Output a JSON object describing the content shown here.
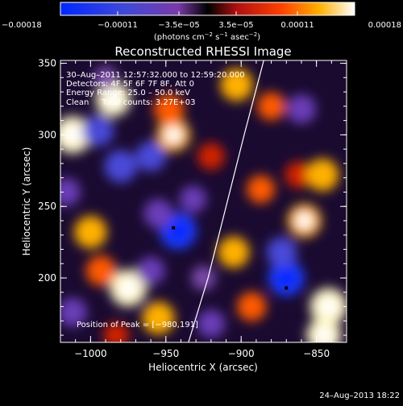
{
  "chart_data": {
    "type": "heatmap",
    "title": "Reconstructed RHESSI Image",
    "xlabel": "Heliocentric X (arcsec)",
    "ylabel": "Heliocentric Y (arcsec)",
    "xlim": [
      -1020,
      -830
    ],
    "ylim": [
      155,
      352
    ],
    "xticks": [
      -1000,
      -950,
      -900,
      -850
    ],
    "xtick_labels": [
      "−1000",
      "−950",
      "−900",
      "−850"
    ],
    "yticks": [
      200,
      250,
      300,
      350
    ],
    "ytick_labels": [
      "200",
      "250",
      "300",
      "350"
    ],
    "colorbar": {
      "min": -0.00018,
      "max": 0.00018,
      "ticks": [
        -0.00018,
        -0.00011,
        -3.5e-05,
        3.5e-05,
        0.00011,
        0.00018
      ],
      "tick_labels": [
        "−0.00018",
        "−0.00011",
        "−3.5e−05",
        "3.5e−05",
        "0.00011",
        "0.00018"
      ],
      "unit_main": "(photons cm",
      "unit_exp1": "−2",
      "unit_mid": " s",
      "unit_exp2": "−1",
      "unit_end": " asec",
      "unit_exp3": "−2",
      "unit_close": ")"
    },
    "info_lines": [
      "30–Aug–2011 12:57:32.000 to 12:59:20.000",
      "Detectors: 4F 5F 6F 7F 8F, Att 0",
      "Energy Range: 25.0 – 50.0 keV",
      "Clean     Total counts: 3.27E+03"
    ],
    "peak_label": "Position of Peak = [−980,191]",
    "peak_markers": [
      {
        "x": -945,
        "y": 235
      },
      {
        "x": -870,
        "y": 193
      }
    ],
    "limb": [
      {
        "x": -935,
        "y": 155
      },
      {
        "x": -922,
        "y": 200
      },
      {
        "x": -910,
        "y": 250
      },
      {
        "x": -898,
        "y": 300
      },
      {
        "x": -885,
        "y": 352
      }
    ],
    "blobs": [
      {
        "x": -1012,
        "y": 300,
        "v": 1.0
      },
      {
        "x": -985,
        "y": 325,
        "v": 0.9
      },
      {
        "x": -1000,
        "y": 232,
        "v": 0.8
      },
      {
        "x": -975,
        "y": 193,
        "v": 1.0
      },
      {
        "x": -993,
        "y": 205,
        "v": 0.7
      },
      {
        "x": -955,
        "y": 172,
        "v": 0.8
      },
      {
        "x": -945,
        "y": 300,
        "v": 0.85
      },
      {
        "x": -948,
        "y": 318,
        "v": 0.7
      },
      {
        "x": -903,
        "y": 335,
        "v": 0.8
      },
      {
        "x": -880,
        "y": 320,
        "v": 0.6
      },
      {
        "x": -920,
        "y": 285,
        "v": 0.55
      },
      {
        "x": -887,
        "y": 262,
        "v": 0.6
      },
      {
        "x": -862,
        "y": 272,
        "v": 0.55
      },
      {
        "x": -905,
        "y": 218,
        "v": 0.75
      },
      {
        "x": -893,
        "y": 180,
        "v": 0.65
      },
      {
        "x": -858,
        "y": 240,
        "v": 0.85
      },
      {
        "x": -846,
        "y": 272,
        "v": 0.8
      },
      {
        "x": -842,
        "y": 180,
        "v": 1.0
      },
      {
        "x": -845,
        "y": 160,
        "v": 0.9
      },
      {
        "x": -983,
        "y": 160,
        "v": 0.5
      },
      {
        "x": -1016,
        "y": 260,
        "v": -0.6
      },
      {
        "x": -995,
        "y": 303,
        "v": -0.75
      },
      {
        "x": -980,
        "y": 278,
        "v": -0.8
      },
      {
        "x": -960,
        "y": 285,
        "v": -0.7
      },
      {
        "x": -942,
        "y": 233,
        "v": -1.0
      },
      {
        "x": -955,
        "y": 245,
        "v": -0.65
      },
      {
        "x": -1012,
        "y": 176,
        "v": -0.65
      },
      {
        "x": -960,
        "y": 205,
        "v": -0.6
      },
      {
        "x": -932,
        "y": 255,
        "v": -0.55
      },
      {
        "x": -920,
        "y": 168,
        "v": -0.6
      },
      {
        "x": -870,
        "y": 200,
        "v": -0.95
      },
      {
        "x": -873,
        "y": 218,
        "v": -0.7
      },
      {
        "x": -860,
        "y": 318,
        "v": -0.65
      },
      {
        "x": -925,
        "y": 200,
        "v": -0.45
      },
      {
        "x": -990,
        "y": 340,
        "v": -0.4
      }
    ]
  },
  "timestamp": "24–Aug–2013 18:22"
}
